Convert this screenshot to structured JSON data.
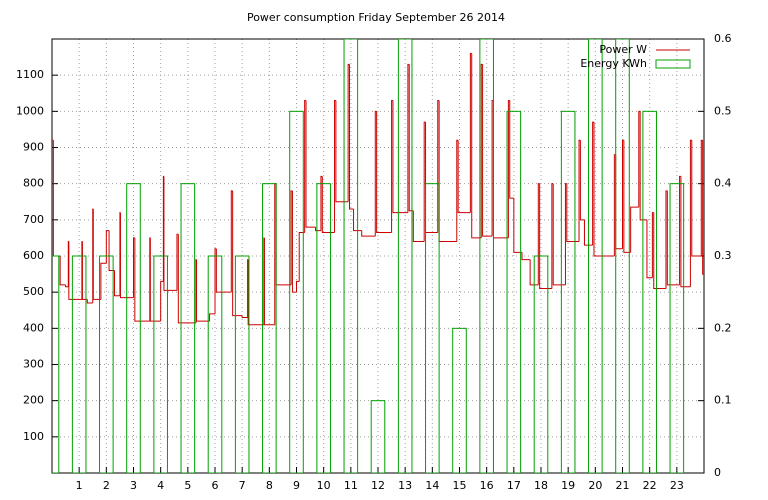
{
  "chart_data": {
    "type": "line",
    "title": "Power consumption Friday September 26 2014",
    "xlim": [
      0,
      24
    ],
    "xticks": [
      1,
      2,
      3,
      4,
      5,
      6,
      7,
      8,
      9,
      10,
      11,
      12,
      13,
      14,
      15,
      16,
      17,
      18,
      19,
      20,
      21,
      22,
      23
    ],
    "ylim": [
      0,
      1200
    ],
    "yticks": [
      100,
      200,
      300,
      400,
      500,
      600,
      700,
      800,
      900,
      1000,
      1100
    ],
    "y2lim": [
      0,
      0.6
    ],
    "y2ticks": [
      0,
      0.1,
      0.2,
      0.3,
      0.4,
      0.5,
      0.6
    ],
    "grid": true,
    "legend": "top-right",
    "series": [
      {
        "name": "Power W",
        "color": "#cc0000",
        "style": "steps",
        "x": [
          0,
          0.05,
          0.3,
          0.5,
          0.6,
          0.62,
          1.0,
          1.1,
          1.12,
          1.3,
          1.5,
          1.52,
          1.8,
          2.0,
          2.1,
          2.3,
          2.5,
          2.52,
          3.0,
          3.05,
          3.5,
          3.6,
          3.62,
          4.0,
          4.1,
          4.12,
          4.6,
          4.65,
          5.0,
          5.3,
          5.32,
          5.8,
          6.0,
          6.05,
          6.6,
          6.65,
          7.0,
          7.2,
          7.22,
          7.8,
          7.82,
          8.2,
          8.25,
          8.8,
          8.85,
          9.0,
          9.1,
          9.3,
          9.35,
          9.7,
          9.9,
          9.95,
          10.4,
          10.45,
          10.9,
          10.95,
          11.1,
          11.4,
          11.9,
          11.95,
          12.5,
          12.55,
          13.1,
          13.15,
          13.3,
          13.7,
          13.75,
          14.2,
          14.25,
          14.9,
          14.95,
          15.4,
          15.45,
          15.8,
          15.85,
          16.2,
          16.25,
          16.8,
          16.85,
          17.0,
          17.3,
          17.6,
          17.9,
          17.95,
          18.4,
          18.45,
          18.9,
          18.95,
          19.4,
          19.45,
          19.6,
          19.9,
          19.95,
          20.7,
          20.75,
          21.0,
          21.05,
          21.3,
          21.6,
          21.65,
          21.9,
          22.1,
          22.15,
          22.6,
          22.65,
          23.1,
          23.15,
          23.5,
          23.55,
          23.9,
          23.95
        ],
        "values": [
          920,
          600,
          520,
          515,
          640,
          480,
          480,
          640,
          480,
          470,
          730,
          480,
          580,
          670,
          560,
          490,
          720,
          485,
          650,
          420,
          420,
          650,
          420,
          530,
          820,
          505,
          660,
          415,
          415,
          590,
          420,
          440,
          620,
          500,
          780,
          435,
          430,
          590,
          410,
          650,
          410,
          800,
          520,
          780,
          500,
          530,
          665,
          1030,
          680,
          670,
          820,
          665,
          1030,
          750,
          1130,
          730,
          670,
          655,
          1000,
          665,
          1030,
          720,
          1130,
          725,
          640,
          970,
          665,
          1030,
          640,
          920,
          720,
          1160,
          650,
          1130,
          655,
          1030,
          650,
          1030,
          760,
          610,
          590,
          520,
          800,
          510,
          800,
          520,
          800,
          640,
          920,
          700,
          630,
          970,
          600,
          880,
          620,
          920,
          610,
          735,
          1000,
          700,
          540,
          720,
          510,
          780,
          520,
          820,
          515,
          920,
          600,
          920,
          550
        ]
      },
      {
        "name": "Energy KWh",
        "color": "#00a000",
        "style": "boxes",
        "axis": "y2",
        "x": [
          0,
          1,
          2,
          3,
          4,
          5,
          6,
          7,
          8,
          9,
          10,
          11,
          12,
          13,
          14,
          15,
          16,
          17,
          18,
          19,
          20,
          21,
          22,
          23
        ],
        "values": [
          0.3,
          0.3,
          0.3,
          0.4,
          0.3,
          0.4,
          0.3,
          0.3,
          0.4,
          0.5,
          0.4,
          0.6,
          0.1,
          0.6,
          0.4,
          0.2,
          0.6,
          0.5,
          0.3,
          0.5,
          0.6,
          0.6,
          0.5,
          0.4
        ]
      }
    ]
  }
}
